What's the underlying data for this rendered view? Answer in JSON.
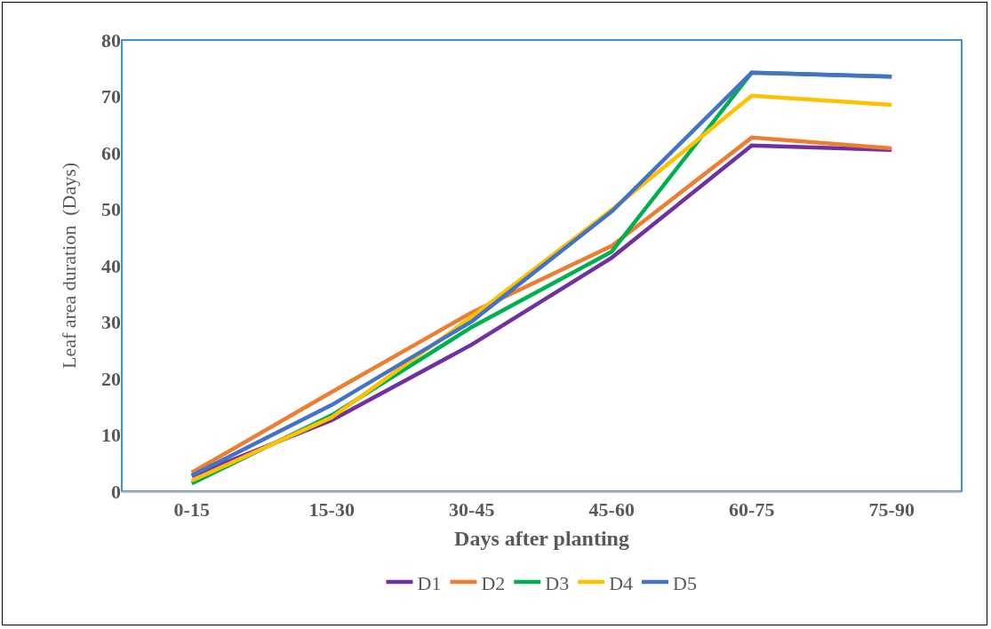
{
  "chart_data": {
    "type": "line",
    "xlabel": "Days after planting",
    "ylabel": "Leaf area duration  (Days)",
    "categories": [
      "0-15",
      "15-30",
      "30-45",
      "45-60",
      "60-75",
      "75-90"
    ],
    "series": [
      {
        "name": "D1",
        "color": "#7030a0",
        "values": [
          2.7,
          12.6,
          26,
          41.4,
          61.3,
          60.5
        ]
      },
      {
        "name": "D2",
        "color": "#ed7d31",
        "values": [
          3.3,
          17.6,
          31.7,
          43.5,
          62.7,
          60.8
        ]
      },
      {
        "name": "D3",
        "color": "#00b050",
        "values": [
          1.4,
          13.5,
          29.1,
          42.5,
          74.2,
          73.5
        ]
      },
      {
        "name": "D4",
        "color": "#ffc000",
        "values": [
          1.9,
          13.1,
          30.9,
          49.9,
          70.1,
          68.5
        ]
      },
      {
        "name": "D5",
        "color": "#4472c4",
        "values": [
          2.8,
          15.3,
          30.1,
          49.6,
          74.2,
          73.5
        ]
      }
    ],
    "ylim": [
      0,
      80
    ],
    "yticks": [
      0,
      10,
      20,
      30,
      40,
      50,
      60,
      70,
      80
    ],
    "grid": false,
    "legend": "bottom",
    "marker": "none",
    "line_style": "solid"
  }
}
